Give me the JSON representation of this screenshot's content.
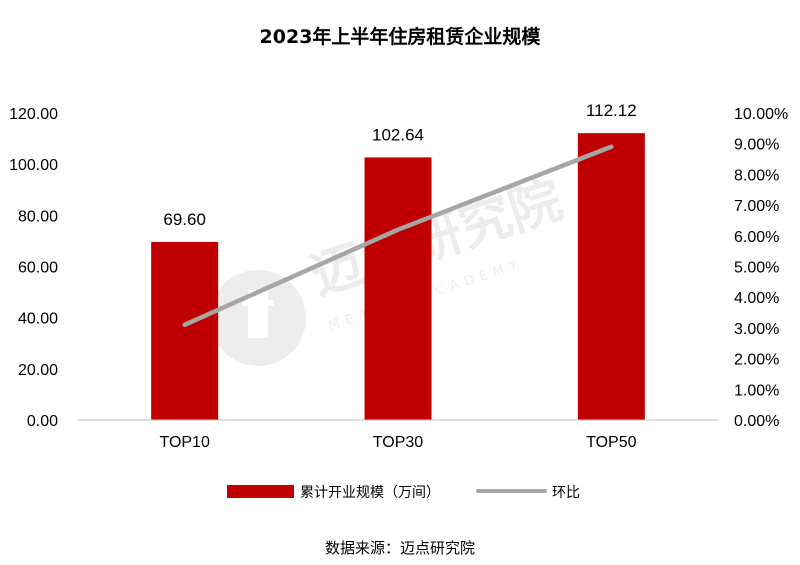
{
  "chart_data": {
    "type": "bar",
    "title": "2023年上半年住房租赁企业规模",
    "categories": [
      "TOP10",
      "TOP30",
      "TOP50"
    ],
    "series": [
      {
        "name": "累计开业规模（万间）",
        "kind": "bar",
        "axis": "left",
        "color": "#c00000",
        "values": [
          69.6,
          102.64,
          112.12
        ],
        "labels": [
          "69.60",
          "102.64",
          "112.12"
        ]
      },
      {
        "name": "环比",
        "kind": "line",
        "axis": "right",
        "color": "#a6a6a6",
        "values": [
          3.1,
          6.2,
          8.9
        ]
      }
    ],
    "y_left": {
      "lim": [
        0,
        120
      ],
      "ticks": [
        "0.00",
        "20.00",
        "40.00",
        "60.00",
        "80.00",
        "100.00",
        "120.00"
      ]
    },
    "y_right": {
      "lim": [
        0,
        10
      ],
      "ticks": [
        "0.00%",
        "1.00%",
        "2.00%",
        "3.00%",
        "4.00%",
        "5.00%",
        "6.00%",
        "7.00%",
        "8.00%",
        "9.00%",
        "10.00%"
      ]
    },
    "legend_position": "bottom",
    "grid": false
  },
  "source": "数据来源：迈点研究院",
  "watermark": {
    "cn": "迈点研究院",
    "en": "MEADIN ACADEMY"
  }
}
